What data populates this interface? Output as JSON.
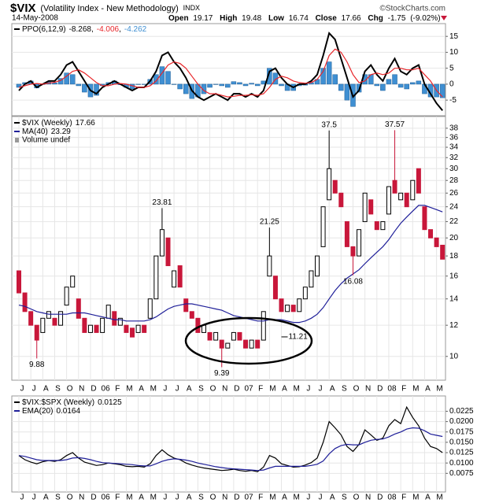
{
  "header": {
    "symbol": "$VIX",
    "name": "(Volatility Index - New Methodology)",
    "exchange": "INDX",
    "date": "14-May-2008",
    "credit": "©StockCharts.com",
    "quote": [
      {
        "label": "Open",
        "value": 19.17
      },
      {
        "label": "High",
        "value": 19.48
      },
      {
        "label": "Low",
        "value": 16.74
      },
      {
        "label": "Close",
        "value": 17.66
      },
      {
        "label": "Chg",
        "value": -1.75
      }
    ],
    "change_pct": {
      "value": -9.02,
      "label": "(-9.02%)"
    }
  },
  "chart_data": [
    {
      "type": "line",
      "ylim": [
        -9.9,
        19
      ],
      "yticks": [
        -5,
        0,
        5,
        10,
        15
      ],
      "grid": true,
      "legend_separator": ",",
      "series": [
        {
          "name": "PPO(6,12,9)",
          "type": "line",
          "color": "#000000",
          "values": [
            -2,
            0,
            1,
            -1,
            0,
            1,
            1,
            3,
            6,
            7,
            4,
            1,
            -2,
            -3,
            -1,
            0,
            1,
            0,
            -1,
            -2,
            -1,
            -1,
            1,
            4,
            9,
            10,
            7,
            5,
            2,
            -2,
            -4,
            -5,
            -4,
            -3,
            -4,
            -5,
            -3,
            -3,
            -4,
            -3,
            -4,
            -2,
            4,
            5,
            2,
            0,
            -1,
            0,
            0,
            1,
            3,
            9,
            16,
            14,
            8,
            2,
            -4,
            -2,
            4,
            6,
            3,
            1,
            5,
            8,
            4,
            3,
            5,
            6,
            0,
            -3,
            -6,
            -8.268
          ]
        },
        {
          "type": "line",
          "color": "#e8262a",
          "values": [
            -1,
            -0.5,
            0,
            0.2,
            0,
            0.3,
            0.6,
            1.2,
            2.5,
            4,
            4.5,
            3.5,
            2,
            0.5,
            -0.5,
            -0.5,
            0,
            0.2,
            0,
            -0.5,
            -1,
            -1,
            -0.5,
            1,
            3.5,
            6,
            7,
            6.5,
            5,
            2.5,
            0,
            -2,
            -3,
            -3,
            -3.5,
            -4,
            -3.8,
            -3.5,
            -3.5,
            -3.3,
            -3.5,
            -3,
            -1,
            1.5,
            2.5,
            2,
            1,
            0.5,
            0.3,
            0.5,
            1.5,
            4,
            9,
            11,
            10,
            7,
            3,
            0.5,
            1,
            3,
            3.5,
            3,
            3.5,
            5,
            5,
            4.5,
            4.5,
            5,
            3,
            1,
            -2,
            -4.006
          ]
        },
        {
          "type": "bar",
          "color": "#3f8fd2",
          "values": [
            -1,
            0.5,
            1,
            -1.2,
            0,
            0.7,
            0.4,
            1.8,
            3.5,
            3,
            -0.5,
            -2.5,
            -4,
            -3.5,
            -0.5,
            0.5,
            1,
            -0.2,
            -1,
            -1.5,
            0,
            0,
            1.5,
            3,
            5.5,
            4,
            0,
            -1.5,
            -3,
            -4.5,
            -4,
            -3,
            -1,
            0,
            -0.5,
            -1,
            0.8,
            0.5,
            -0.5,
            0.3,
            -0.5,
            1,
            5,
            3.5,
            -0.5,
            -2,
            -2,
            -0.5,
            -0.3,
            0.5,
            1.5,
            5,
            7,
            3,
            -2,
            -5,
            -7,
            -2.5,
            3,
            3,
            -0.5,
            -2,
            1.5,
            3,
            -1,
            -1.5,
            0.5,
            1,
            -3,
            -4,
            -4,
            -4.262
          ]
        }
      ]
    },
    {
      "type": "candlestick",
      "log": true,
      "ylim": [
        8.7,
        40.7
      ],
      "yticks": [
        10,
        12,
        14,
        16,
        18,
        20,
        22,
        24,
        26,
        28,
        30,
        32,
        34,
        36,
        38
      ],
      "grid": true,
      "categories": [
        "J",
        null,
        "J",
        null,
        "A",
        null,
        "S",
        null,
        "O",
        null,
        "N",
        null,
        "D",
        null,
        "06",
        null,
        "F",
        null,
        "M",
        null,
        "A",
        null,
        "M",
        null,
        "J",
        null,
        "J",
        null,
        "A",
        null,
        "S",
        null,
        "O",
        null,
        "N",
        null,
        "D",
        null,
        "07",
        null,
        "F",
        null,
        "M",
        null,
        "A",
        null,
        "M",
        null,
        "J",
        null,
        "J",
        null,
        "A",
        null,
        "S",
        null,
        "O",
        null,
        "N",
        null,
        "D",
        null,
        "08",
        null,
        "F",
        null,
        "M",
        null,
        "A",
        null,
        "M",
        null
      ],
      "series": [
        {
          "name": "$VIX (Weekly)",
          "type": "candle",
          "up_color": "#000000",
          "down_color": "#c8173a",
          "open": [
            16.5,
            14.5,
            13,
            12,
            11.5,
            12.5,
            12.5,
            12,
            13.5,
            15,
            14,
            12.5,
            11.5,
            12,
            11.5,
            12.5,
            13,
            12,
            12,
            11.8,
            11.5,
            12,
            12.5,
            14,
            18,
            20,
            15,
            17,
            14,
            13,
            12.5,
            11.5,
            11.5,
            11,
            11,
            10.5,
            11,
            11.5,
            11,
            10.5,
            11,
            11,
            16,
            16,
            14,
            13,
            13.5,
            13,
            14,
            15,
            16,
            19,
            25,
            28,
            26,
            22,
            19,
            18,
            22,
            25,
            22,
            21,
            23,
            28,
            25,
            26,
            25,
            30,
            24,
            21,
            20,
            19.17
          ],
          "close": [
            14.5,
            13,
            12,
            11,
            12.5,
            13,
            12,
            13,
            15,
            16,
            12.5,
            11.5,
            12,
            11.5,
            12.5,
            13.5,
            12,
            12.5,
            11.5,
            11.2,
            12,
            11.5,
            14,
            18,
            21,
            17,
            16.5,
            15,
            13,
            12.5,
            11.5,
            12,
            11,
            11.5,
            10.5,
            10.8,
            11.5,
            11,
            10.5,
            11,
            10.5,
            13,
            18,
            14,
            13,
            13.5,
            13,
            14,
            15,
            16.5,
            18,
            24,
            30,
            26,
            24,
            19,
            18,
            21,
            26,
            23,
            21,
            22,
            27,
            26,
            26,
            24,
            28,
            26,
            21,
            20,
            19,
            17.66
          ]
        },
        {
          "name": "MA(40)",
          "type": "line",
          "color": "#1f1f99",
          "values": [
            13.5,
            13.4,
            13.2,
            13,
            12.9,
            12.8,
            12.8,
            12.8,
            12.8,
            12.9,
            12.9,
            12.9,
            12.8,
            12.7,
            12.6,
            12.5,
            12.4,
            12.4,
            12.3,
            12.3,
            12.3,
            12.3,
            12.4,
            12.6,
            12.9,
            13.2,
            13.4,
            13.5,
            13.6,
            13.6,
            13.5,
            13.4,
            13.3,
            13.2,
            13.1,
            12.9,
            12.7,
            12.6,
            12.5,
            12.4,
            12.3,
            12.3,
            12.4,
            12.4,
            12.4,
            12.3,
            12.2,
            12.2,
            12.3,
            12.5,
            12.8,
            13.3,
            14,
            14.7,
            15.3,
            15.8,
            16.2,
            16.6,
            17.2,
            17.8,
            18.4,
            19,
            19.8,
            20.8,
            21.8,
            22.6,
            23.4,
            24.2,
            24.2,
            23.9,
            23.6,
            23.29
          ]
        }
      ],
      "notes": [
        "Volume undef"
      ],
      "annotations": [
        {
          "value": 9.88,
          "at": 3,
          "position": "below"
        },
        {
          "value": 23.81,
          "at": 24,
          "position": "above"
        },
        {
          "value": 9.39,
          "at": 34,
          "position": "below"
        },
        {
          "value": 21.25,
          "at": 42,
          "position": "above"
        },
        {
          "value": 11.21,
          "at": 44,
          "position": "right"
        },
        {
          "value": 37.5,
          "at": 52,
          "position": "above"
        },
        {
          "value": 16.08,
          "at": 56,
          "position": "below"
        },
        {
          "value": 37.57,
          "at": 63,
          "position": "above"
        }
      ]
    },
    {
      "type": "line",
      "ylim": [
        0.003,
        0.0262
      ],
      "yticks": [
        0.0075,
        {
          "value": 0.01,
          "label": "0.0100"
        },
        0.0125,
        {
          "value": 0.015,
          "label": "0.0150"
        },
        0.0175,
        {
          "value": 0.02,
          "label": "0.0200"
        },
        0.0225
      ],
      "grid": true,
      "categories": [
        "J",
        null,
        "J",
        null,
        "A",
        null,
        "S",
        null,
        "O",
        null,
        "N",
        null,
        "D",
        null,
        "06",
        null,
        "F",
        null,
        "M",
        null,
        "A",
        null,
        "M",
        null,
        "J",
        null,
        "J",
        null,
        "A",
        null,
        "S",
        null,
        "O",
        null,
        "N",
        null,
        "D",
        null,
        "07",
        null,
        "F",
        null,
        "M",
        null,
        "A",
        null,
        "M",
        null,
        "J",
        null,
        "J",
        null,
        "A",
        null,
        "S",
        null,
        "O",
        null,
        "N",
        null,
        "D",
        null,
        "08",
        null,
        "F",
        null,
        "M",
        null,
        "A",
        null,
        "M",
        null
      ],
      "series": [
        {
          "name": "$VIX:$SPX (Weekly)",
          "type": "line",
          "color": "#000000",
          "values": [
            0.0118,
            0.0108,
            0.0102,
            0.0098,
            0.0103,
            0.0106,
            0.0104,
            0.0108,
            0.0118,
            0.0125,
            0.0112,
            0.0102,
            0.0098,
            0.0094,
            0.0096,
            0.01,
            0.0098,
            0.0096,
            0.0092,
            0.0091,
            0.0092,
            0.009,
            0.0098,
            0.0118,
            0.0132,
            0.012,
            0.0112,
            0.0108,
            0.01,
            0.0095,
            0.0091,
            0.0088,
            0.0086,
            0.0084,
            0.0082,
            0.0083,
            0.0085,
            0.0082,
            0.008,
            0.0082,
            0.0079,
            0.009,
            0.0118,
            0.0112,
            0.0098,
            0.0094,
            0.009,
            0.0091,
            0.0095,
            0.0101,
            0.0112,
            0.015,
            0.02,
            0.0185,
            0.0168,
            0.014,
            0.0128,
            0.0145,
            0.018,
            0.0168,
            0.0155,
            0.016,
            0.019,
            0.0205,
            0.0195,
            0.0235,
            0.021,
            0.019,
            0.016,
            0.014,
            0.0135,
            0.0125
          ]
        },
        {
          "name": "EMA(20)",
          "type": "line",
          "color": "#1f1f99",
          "values": [
            0.0118,
            0.0116,
            0.0112,
            0.0108,
            0.0106,
            0.0106,
            0.0106,
            0.0106,
            0.0108,
            0.0112,
            0.0113,
            0.0111,
            0.0108,
            0.0104,
            0.0101,
            0.01,
            0.0099,
            0.0098,
            0.0097,
            0.0096,
            0.0094,
            0.0093,
            0.0093,
            0.0098,
            0.0104,
            0.0108,
            0.011,
            0.0109,
            0.0107,
            0.0104,
            0.01,
            0.0097,
            0.0094,
            0.0091,
            0.0089,
            0.0087,
            0.0086,
            0.0085,
            0.0084,
            0.0083,
            0.0082,
            0.0083,
            0.0088,
            0.0092,
            0.0092,
            0.0092,
            0.0092,
            0.0092,
            0.0092,
            0.0094,
            0.0097,
            0.0105,
            0.0122,
            0.0135,
            0.0142,
            0.0145,
            0.0144,
            0.0144,
            0.015,
            0.0155,
            0.0157,
            0.0158,
            0.0163,
            0.017,
            0.0175,
            0.0182,
            0.0185,
            0.0184,
            0.0178,
            0.017,
            0.0167,
            0.0164
          ]
        }
      ]
    }
  ]
}
